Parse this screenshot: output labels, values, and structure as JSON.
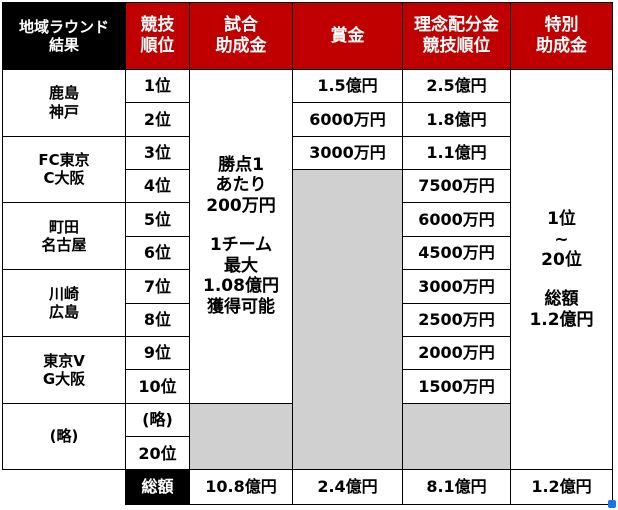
{
  "headers": {
    "region": [
      "地域ラウンド",
      "結果"
    ],
    "rank": [
      "競技",
      "順位"
    ],
    "match_grant": [
      "試合",
      "助成金"
    ],
    "prize": "賞金",
    "distribution": [
      "理念配分金",
      "競技順位"
    ],
    "special": [
      "特別",
      "助成金"
    ]
  },
  "regions": [
    [
      "鹿島",
      "神戸"
    ],
    [
      "FC東京",
      "C大阪"
    ],
    [
      "町田",
      "名古屋"
    ],
    [
      "川崎",
      "広島"
    ],
    [
      "東京V",
      "G大阪"
    ],
    [
      "(略)"
    ]
  ],
  "ranks": [
    "1位",
    "2位",
    "3位",
    "4位",
    "5位",
    "6位",
    "7位",
    "8位",
    "9位",
    "10位",
    "(略)",
    "20位"
  ],
  "prize": [
    "1.5億円",
    "6000万円",
    "3000万円"
  ],
  "distribution": [
    "2.5億円",
    "1.8億円",
    "1.1億円",
    "7500万円",
    "6000万円",
    "4500万円",
    "3000万円",
    "2500万円",
    "2000万円",
    "1500万円"
  ],
  "match_grant": {
    "line1": [
      "勝点1",
      "あたり",
      "200万円"
    ],
    "line2": [
      "1チーム",
      "最大",
      "1.08億円",
      "獲得可能"
    ]
  },
  "special": {
    "range": [
      "1位",
      "~",
      "20位"
    ],
    "total": [
      "総額",
      "1.2億円"
    ]
  },
  "totals": {
    "label": "総額",
    "match_grant": "10.8億円",
    "prize": "2.4億円",
    "distribution": "8.1億円",
    "special": "1.2億円"
  },
  "colors": {
    "header_black": "#000000",
    "header_red": "#c00000",
    "empty_cell": "#d0d0d0"
  }
}
